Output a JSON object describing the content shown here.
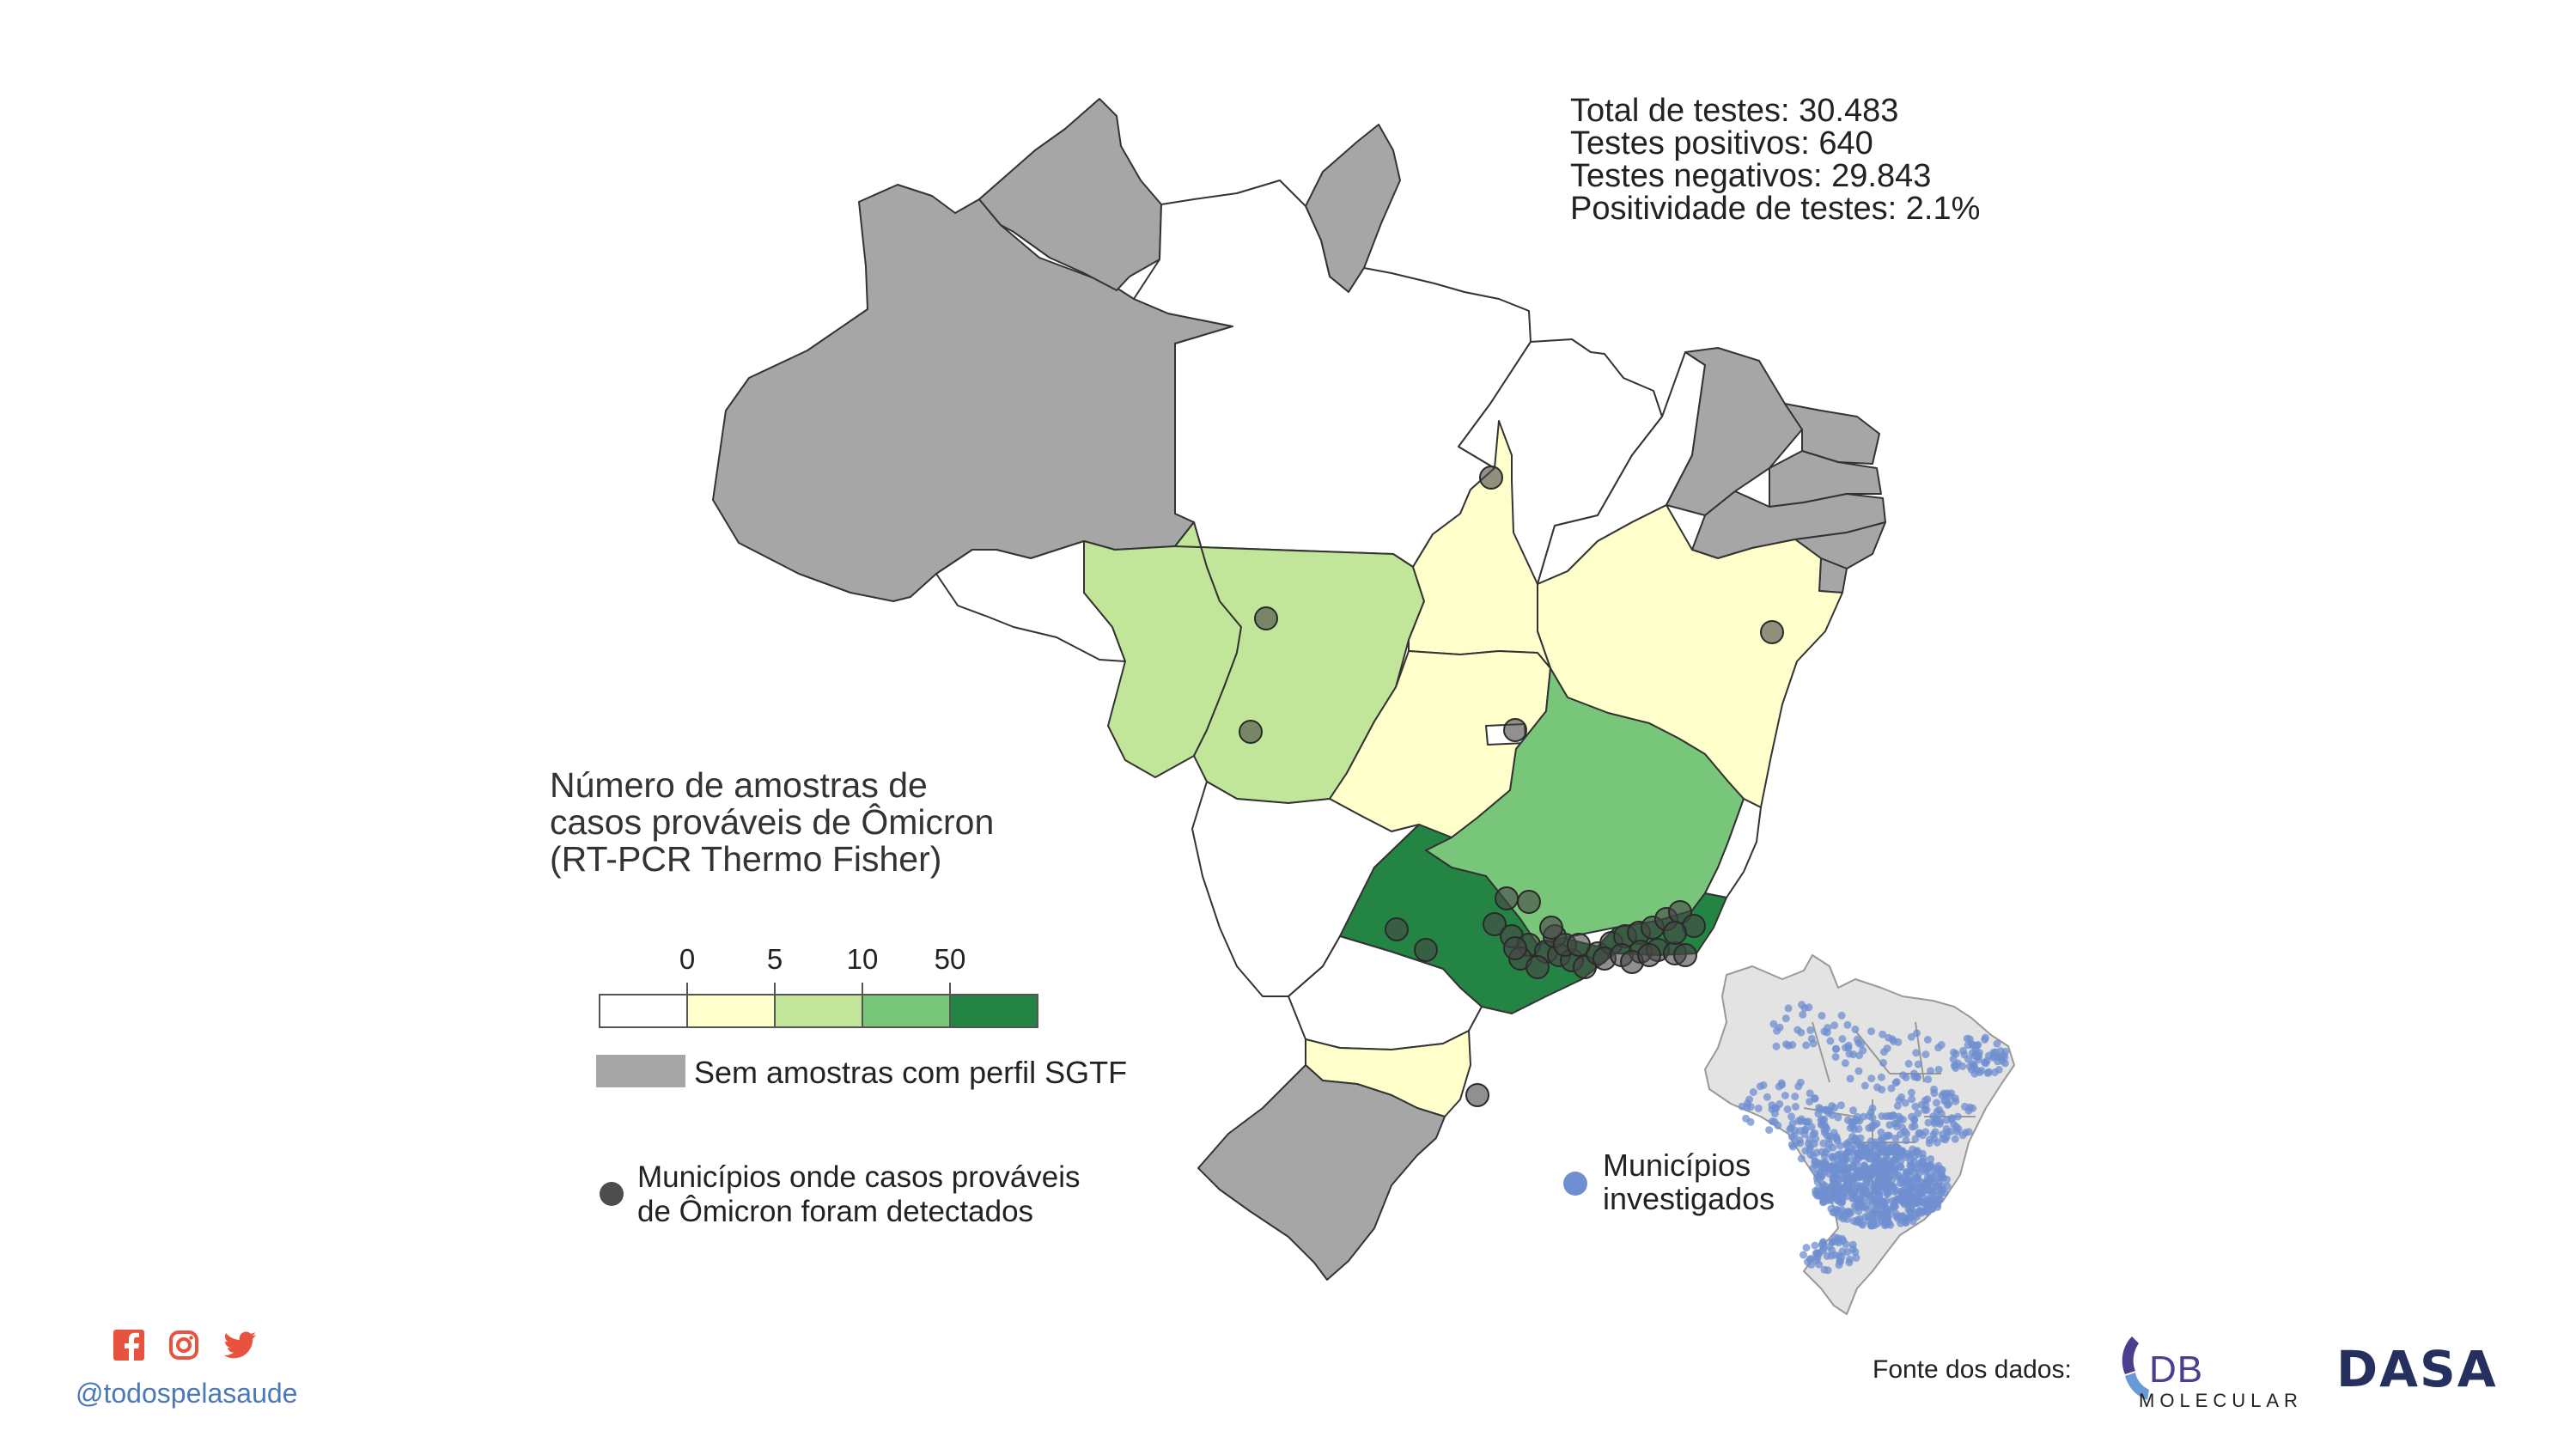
{
  "stats": {
    "total": "Total de testes: 30.483",
    "positive": "Testes positivos: 640",
    "negative": "Testes negativos: 29.843",
    "positivity": "Positividade de testes: 2.1%"
  },
  "legend": {
    "title_lines": [
      "Número de amostras de",
      "casos prováveis de Ômicron",
      "(RT-PCR Thermo Fisher)"
    ],
    "ticks": [
      "0",
      "5",
      "10",
      "50"
    ],
    "bins": [
      {
        "range": [
          0,
          0
        ],
        "color": "#ffffff"
      },
      {
        "range": [
          0,
          5
        ],
        "color": "#ffffcc"
      },
      {
        "range": [
          5,
          10
        ],
        "color": "#c2e699"
      },
      {
        "range": [
          10,
          50
        ],
        "color": "#78c679"
      },
      {
        "range": [
          50,
          null
        ],
        "color": "#238443"
      }
    ],
    "no_sample_color": "#a6a6a6",
    "no_sample_label": "Sem amostras com perfil SGTF",
    "dot_label_lines": [
      "Municípios onde casos prováveis",
      "de Ômicron foram detectados"
    ],
    "dot_color": "#4d4d4d",
    "investigated_label_lines": [
      "Municípios",
      "investigados"
    ],
    "investigated_color": "#6f8fd0"
  },
  "regions": {
    "no_sample": [
      "Amazonas",
      "Roraima",
      "Amapá",
      "Ceará",
      "Rio Grande do Norte",
      "Paraíba",
      "Pernambuco",
      "Alagoas",
      "Sergipe",
      "Rio Grande do Sul"
    ],
    "bin_0": [
      "Acre",
      "Pará",
      "Maranhão",
      "Piauí",
      "Mato Grosso do Sul",
      "Paraná",
      "Espírito Santo",
      "Distrito Federal"
    ],
    "bin_0_5": [
      "Tocantins",
      "Goiás",
      "Bahia",
      "Santa Catarina"
    ],
    "bin_5_10": [
      "Rondônia",
      "Mato Grosso"
    ],
    "bin_10_50": [
      "Minas Gerais"
    ],
    "bin_50_plus": [
      "São Paulo"
    ]
  },
  "footer": {
    "handle": "@todospelasaude",
    "social_icons": [
      "facebook-icon",
      "instagram-icon",
      "twitter-icon"
    ],
    "social_color": "#e8533f",
    "source_label": "Fonte dos dados:",
    "db_logo": "DB",
    "db_subtitle": "MOLECULAR",
    "dasa_logo": "DASA"
  }
}
